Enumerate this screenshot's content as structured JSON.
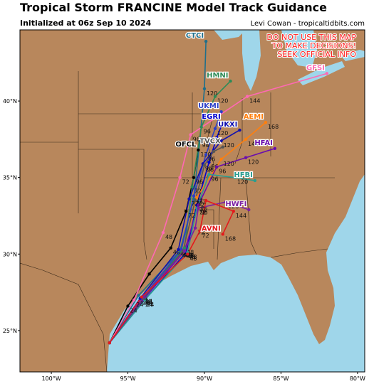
{
  "header": {
    "title": "Tropical Storm FRANCINE Model Track Guidance",
    "subtitle": "Initialized at 06z Sep 10 2024",
    "credit": "Levi Cowan - tropicaltidbits.com"
  },
  "warning": [
    "DO NOT USE THIS MAP",
    "TO MAKE DECISIONS!",
    "SEEK OFFICIAL INFO"
  ],
  "chart_data": {
    "type": "track-map",
    "xlim": [
      -102.05,
      -79.53
    ],
    "ylim": [
      22.3,
      44.65
    ],
    "xticks": [
      {
        "value": -100,
        "label": "100°W"
      },
      {
        "value": -95,
        "label": "95°W"
      },
      {
        "value": -90,
        "label": "90°W"
      },
      {
        "value": -85,
        "label": "85°W"
      },
      {
        "value": -80,
        "label": "80°W"
      }
    ],
    "yticks": [
      {
        "value": 25,
        "label": "25°N"
      },
      {
        "value": 30,
        "label": "30°N"
      },
      {
        "value": 35,
        "label": "35°N"
      },
      {
        "value": 40,
        "label": "40°N"
      }
    ],
    "series": [
      {
        "name": "OFCL",
        "color": "#000000",
        "lon": [
          -96.2,
          -95.0,
          -93.6,
          -92.2,
          -91.2,
          -90.7,
          -90.4
        ],
        "lat": [
          24.2,
          26.6,
          28.7,
          30.4,
          32.8,
          35.0,
          36.8
        ],
        "hours": [
          null,
          24,
          null,
          48,
          72,
          96,
          120
        ]
      },
      {
        "name": "CTCI",
        "color": "#1f6f8b",
        "lon": [
          -96.2,
          -94.3,
          -91.6,
          -90.7,
          -90.3,
          -90.0,
          -89.9
        ],
        "lat": [
          24.2,
          27.3,
          30.2,
          33.6,
          37.4,
          40.8,
          43.9
        ],
        "hours": [
          null,
          24,
          48,
          72,
          96,
          120,
          null
        ]
      },
      {
        "name": "HMNI",
        "color": "#2e8b57",
        "lon": [
          -96.2,
          -94.0,
          -91.3,
          -90.8,
          -90.2,
          -89.3,
          -88.3
        ],
        "lat": [
          24.2,
          27.2,
          30.4,
          34.4,
          38.3,
          40.3,
          41.3
        ],
        "hours": [
          null,
          24,
          48,
          72,
          96,
          120,
          null
        ]
      },
      {
        "name": "UKMI",
        "color": "#2b3fc8",
        "lon": [
          -96.2,
          -94.1,
          -91.5,
          -90.7,
          -89.9,
          -89.3,
          -88.9
        ],
        "lat": [
          24.2,
          27.1,
          30.3,
          33.8,
          36.5,
          38.2,
          39.3
        ],
        "hours": [
          null,
          24,
          48,
          72,
          96,
          120,
          null
        ]
      },
      {
        "name": "EGRI",
        "color": "#0000cd",
        "lon": [
          -96.2,
          -93.9,
          -91.2,
          -90.5,
          -89.7,
          -89.2,
          -88.8
        ],
        "lat": [
          24.2,
          27.0,
          30.1,
          33.2,
          36.0,
          37.6,
          38.6
        ],
        "hours": [
          null,
          24,
          48,
          72,
          96,
          null,
          null
        ]
      },
      {
        "name": "UKXI",
        "color": "#1010b0",
        "lon": [
          -96.2,
          -94.2,
          -91.7,
          -91.0,
          -90.1,
          -88.9,
          -87.7
        ],
        "lat": [
          24.2,
          27.1,
          30.3,
          33.6,
          35.9,
          37.4,
          38.1
        ],
        "hours": [
          null,
          24,
          48,
          72,
          96,
          120,
          null
        ]
      },
      {
        "name": "AEMI",
        "color": "#ff7f0e",
        "lon": [
          -96.2,
          -94.0,
          -91.4,
          -90.5,
          -88.9,
          -87.3,
          -86.0
        ],
        "lat": [
          24.2,
          27.0,
          30.2,
          33.7,
          36.2,
          37.5,
          38.6
        ],
        "hours": [
          null,
          24,
          48,
          72,
          120,
          144,
          168
        ]
      },
      {
        "name": "GFSI",
        "color": "#ff69b4",
        "lon": [
          -96.2,
          -94.6,
          -92.7,
          -91.6,
          -90.9,
          -87.2,
          -82.0
        ],
        "lat": [
          24.2,
          27.0,
          31.4,
          35.0,
          37.8,
          40.3,
          41.8
        ],
        "hours": [
          null,
          24,
          48,
          72,
          96,
          144,
          null
        ]
      },
      {
        "name": "HFAI",
        "color": "#6a0dad",
        "lon": [
          -96.2,
          -94.0,
          -91.3,
          -90.4,
          -89.2,
          -87.3,
          -85.4
        ],
        "lat": [
          24.2,
          27.0,
          30.2,
          33.2,
          35.7,
          36.3,
          36.9
        ],
        "hours": [
          null,
          24,
          48,
          72,
          96,
          120,
          null
        ]
      },
      {
        "name": "HFBI",
        "color": "#2a9d8f",
        "lon": [
          -96.2,
          -93.9,
          -91.1,
          -90.5,
          -89.7,
          -88.0,
          -86.7
        ],
        "lat": [
          24.2,
          27.0,
          30.1,
          33.0,
          35.2,
          35.0,
          34.8
        ],
        "hours": [
          null,
          24,
          48,
          72,
          96,
          120,
          null
        ]
      },
      {
        "name": "TVCX",
        "color": "#555555",
        "lon": [
          -96.2,
          -94.0,
          -91.4,
          -90.6,
          -90.0,
          -89.4,
          -88.8
        ],
        "lat": [
          24.2,
          27.1,
          30.2,
          33.5,
          35.8,
          36.7,
          37.0
        ],
        "hours": [
          null,
          24,
          48,
          72,
          96,
          null,
          null
        ]
      },
      {
        "name": "HWFI",
        "color": "#7b1fa2",
        "lon": [
          -96.2,
          -94.0,
          -91.3,
          -90.6,
          -90.4,
          -88.6,
          -87.1
        ],
        "lat": [
          24.2,
          27.2,
          30.2,
          31.7,
          33.0,
          33.4,
          32.9
        ],
        "hours": [
          null,
          24,
          48,
          72,
          96,
          120,
          null
        ]
      },
      {
        "name": "AVNI",
        "color": "#e31a1c",
        "lon": [
          -96.2,
          -94.1,
          -91.1,
          -90.3,
          -89.9,
          -88.1,
          -88.8
        ],
        "lat": [
          24.2,
          27.2,
          30.0,
          31.5,
          33.5,
          32.8,
          31.3
        ],
        "hours": [
          null,
          24,
          48,
          72,
          null,
          144,
          168
        ]
      }
    ]
  }
}
